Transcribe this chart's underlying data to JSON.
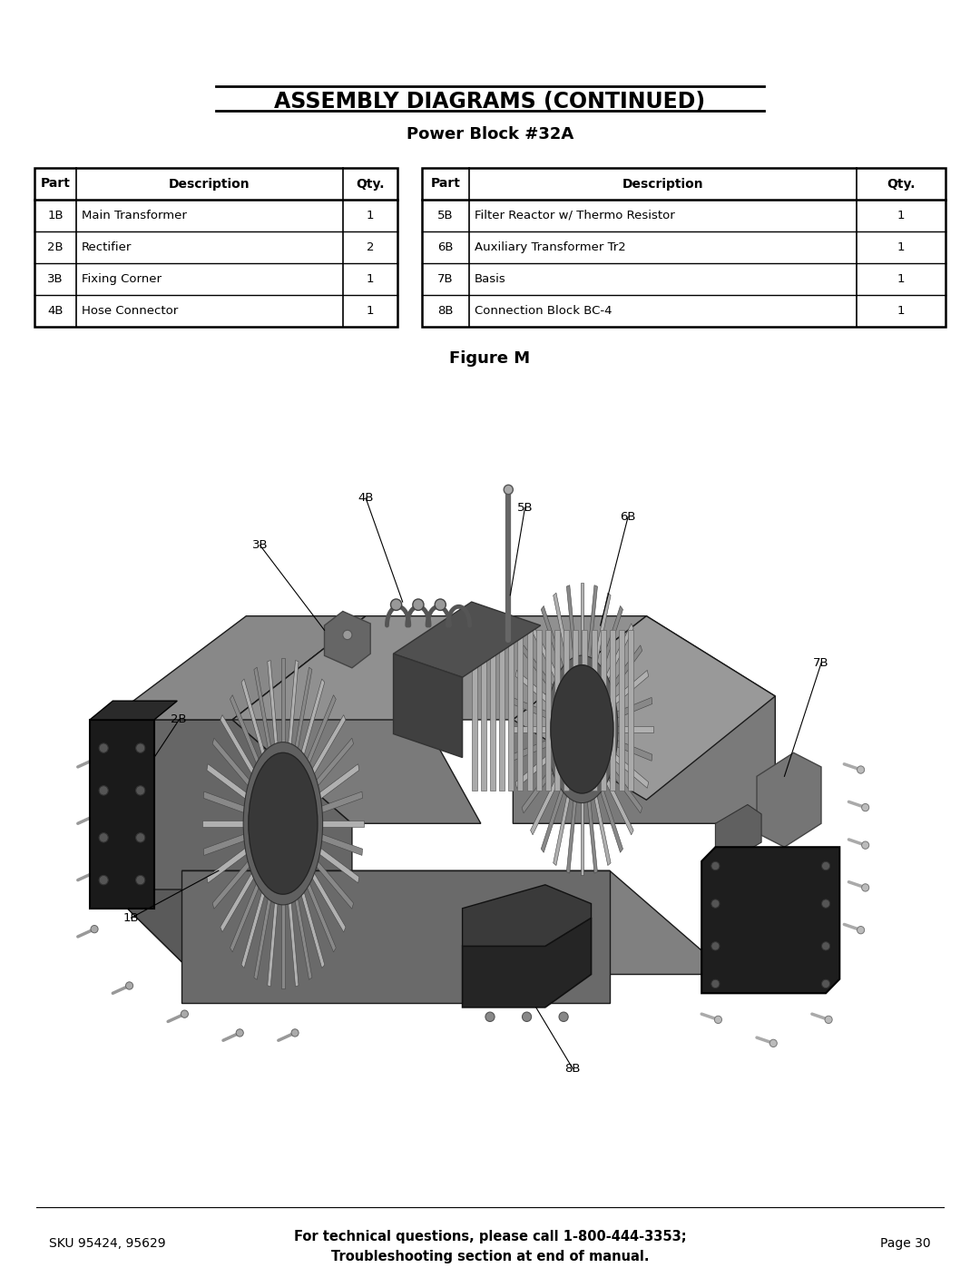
{
  "title": "ASSEMBLY DIAGRAMS (CONTINUED)",
  "subtitle": "Power Block #32A",
  "figure_caption": "Figure M",
  "footer_left": "SKU 95424, 95629",
  "footer_center_line1": "For technical questions, please call 1-800-444-3353;",
  "footer_center_line2": "Troubleshooting section at end of manual.",
  "footer_right": "Page 30",
  "bg_color": "#ffffff",
  "table_left": {
    "headers": [
      "Part",
      "Description",
      "Qty."
    ],
    "rows": [
      [
        "1B",
        "Main Transformer",
        "1"
      ],
      [
        "2B",
        "Rectifier",
        "2"
      ],
      [
        "3B",
        "Fixing Corner",
        "1"
      ],
      [
        "4B",
        "Hose Connector",
        "1"
      ]
    ]
  },
  "table_right": {
    "headers": [
      "Part",
      "Description",
      "Qty."
    ],
    "rows": [
      [
        "5B",
        "Filter Reactor w/ Thermo Resistor",
        "1"
      ],
      [
        "6B",
        "Auxiliary Transformer Tr2",
        "1"
      ],
      [
        "7B",
        "Basis",
        "1"
      ],
      [
        "8B",
        "Connection Block BC-4",
        "1"
      ]
    ]
  }
}
